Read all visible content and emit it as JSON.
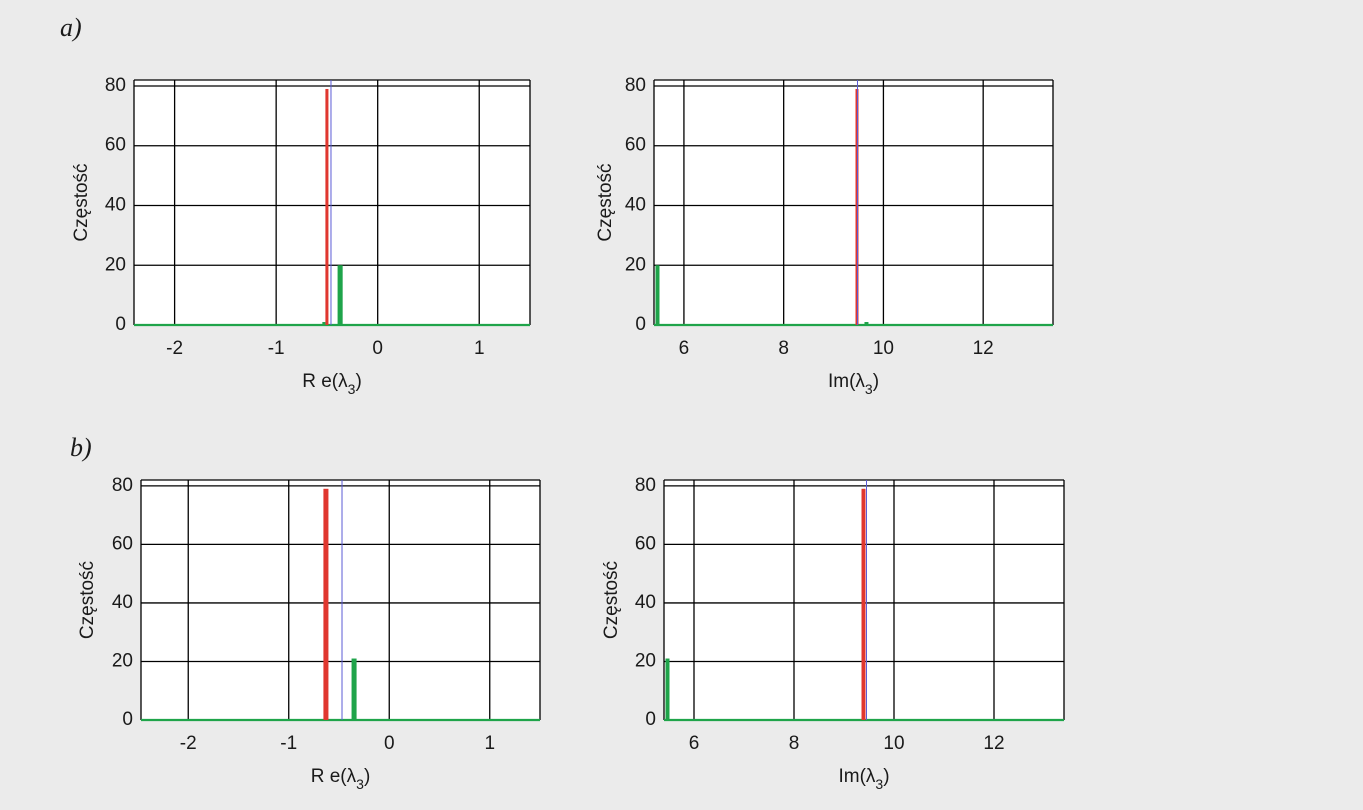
{
  "figure": {
    "background": "#ebebeb",
    "plot_background": "#ffffff",
    "colors": {
      "grid": "#000000",
      "series_red": "#e0372f",
      "series_green": "#1fa44a",
      "reference_line": "#5b5bd6"
    }
  },
  "chart_data": [
    {
      "type": "bar",
      "panel": "a)",
      "title": "",
      "xlabel_main": "R e(λ",
      "xlabel_sub": "3",
      "xlabel_close": ")",
      "ylabel": "Częstość",
      "xlim": [
        -2.4,
        1.5
      ],
      "ylim": [
        0,
        82
      ],
      "xticks": [
        -2,
        -1,
        0,
        1
      ],
      "xtick_labels": [
        "-2",
        "-1",
        "0",
        "1"
      ],
      "yticks": [
        0,
        20,
        40,
        60,
        80
      ],
      "ytick_labels": [
        "0",
        "20",
        "40",
        "60",
        "80"
      ],
      "grid": true,
      "reference_line_x": -0.46,
      "series": [
        {
          "color": "red",
          "bars": [
            {
              "x": -0.5,
              "width": 0.03,
              "value": 79
            }
          ]
        },
        {
          "color": "green",
          "bars": [
            {
              "x": -0.53,
              "width": 0.03,
              "value": 1
            },
            {
              "x": -0.37,
              "width": 0.05,
              "value": 20
            }
          ]
        }
      ]
    },
    {
      "type": "bar",
      "panel": "",
      "title": "",
      "xlabel_main": "Im(λ",
      "xlabel_sub": "3",
      "xlabel_close": ")",
      "ylabel": "Częstość",
      "xlim": [
        5.4,
        13.4
      ],
      "ylim": [
        0,
        82
      ],
      "xticks": [
        6,
        8,
        10,
        12
      ],
      "xtick_labels": [
        "6",
        "8",
        "10",
        "12"
      ],
      "yticks": [
        0,
        20,
        40,
        60,
        80
      ],
      "ytick_labels": [
        "0",
        "20",
        "40",
        "60",
        "80"
      ],
      "grid": true,
      "reference_line_x": 9.48,
      "series": [
        {
          "color": "red",
          "bars": [
            {
              "x": 9.47,
              "width": 0.06,
              "value": 79
            }
          ]
        },
        {
          "color": "green",
          "bars": [
            {
              "x": 5.47,
              "width": 0.08,
              "value": 20
            },
            {
              "x": 9.66,
              "width": 0.08,
              "value": 1
            }
          ]
        }
      ]
    },
    {
      "type": "bar",
      "panel": "b)",
      "title": "",
      "xlabel_main": "R e(λ",
      "xlabel_sub": "3",
      "xlabel_close": ")",
      "ylabel": "Częstość",
      "xlim": [
        -2.47,
        1.5
      ],
      "ylim": [
        0,
        82
      ],
      "xticks": [
        -2,
        -1,
        0,
        1
      ],
      "xtick_labels": [
        "-2",
        "-1",
        "0",
        "1"
      ],
      "yticks": [
        0,
        20,
        40,
        60,
        80
      ],
      "ytick_labels": [
        "0",
        "20",
        "40",
        "60",
        "80"
      ],
      "grid": true,
      "reference_line_x": -0.47,
      "series": [
        {
          "color": "red",
          "bars": [
            {
              "x": -0.63,
              "width": 0.05,
              "value": 79
            }
          ]
        },
        {
          "color": "green",
          "bars": [
            {
              "x": -0.35,
              "width": 0.05,
              "value": 21
            }
          ]
        }
      ]
    },
    {
      "type": "bar",
      "panel": "",
      "title": "",
      "xlabel_main": "Im(λ",
      "xlabel_sub": "3",
      "xlabel_close": ")",
      "ylabel": "Częstość",
      "xlim": [
        5.4,
        13.4
      ],
      "ylim": [
        0,
        82
      ],
      "xticks": [
        6,
        8,
        10,
        12
      ],
      "xtick_labels": [
        "6",
        "8",
        "10",
        "12"
      ],
      "yticks": [
        0,
        20,
        40,
        60,
        80
      ],
      "ytick_labels": [
        "0",
        "20",
        "40",
        "60",
        "80"
      ],
      "grid": true,
      "reference_line_x": 9.45,
      "series": [
        {
          "color": "red",
          "bars": [
            {
              "x": 9.39,
              "width": 0.08,
              "value": 79
            }
          ]
        },
        {
          "color": "green",
          "bars": [
            {
              "x": 5.47,
              "width": 0.08,
              "value": 21
            }
          ]
        }
      ]
    }
  ]
}
